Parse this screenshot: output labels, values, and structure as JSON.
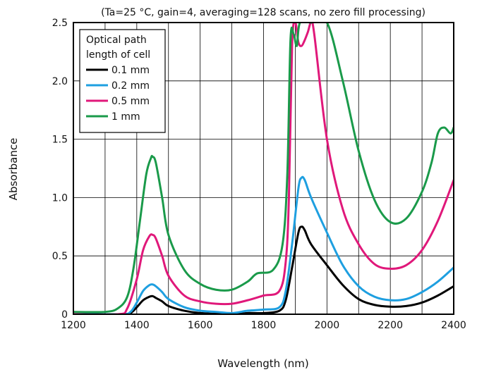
{
  "chart_data": {
    "type": "line",
    "title": "(Ta=25 °C, gain=4, averaging=128 scans, no zero fill processing)",
    "xlabel": "Wavelength (nm)",
    "ylabel": "Absorbance",
    "xlim": [
      1200,
      2400
    ],
    "ylim": [
      0,
      2.5
    ],
    "xticks": [
      "1200",
      "1400",
      "1600",
      "1800",
      "2000",
      "2200",
      "2400"
    ],
    "yticks": [
      "0",
      "0.5",
      "1.0",
      "1.5",
      "2.0",
      "2.5"
    ],
    "grid": true,
    "legend": {
      "title_lines": [
        "Optical path",
        "length of cell"
      ],
      "placement": "top-left"
    },
    "series": [
      {
        "name": "0.1 mm",
        "color": "#000000",
        "points": [
          [
            1200,
            0
          ],
          [
            1350,
            0
          ],
          [
            1380,
            0.01
          ],
          [
            1400,
            0.06
          ],
          [
            1420,
            0.12
          ],
          [
            1440,
            0.15
          ],
          [
            1450,
            0.155
          ],
          [
            1460,
            0.14
          ],
          [
            1480,
            0.11
          ],
          [
            1500,
            0.07
          ],
          [
            1550,
            0.03
          ],
          [
            1600,
            0.01
          ],
          [
            1700,
            0
          ],
          [
            1750,
            0.01
          ],
          [
            1800,
            0.01
          ],
          [
            1850,
            0.03
          ],
          [
            1870,
            0.12
          ],
          [
            1890,
            0.4
          ],
          [
            1910,
            0.7
          ],
          [
            1920,
            0.75
          ],
          [
            1930,
            0.72
          ],
          [
            1950,
            0.6
          ],
          [
            2000,
            0.42
          ],
          [
            2050,
            0.25
          ],
          [
            2100,
            0.13
          ],
          [
            2150,
            0.08
          ],
          [
            2200,
            0.065
          ],
          [
            2250,
            0.07
          ],
          [
            2300,
            0.1
          ],
          [
            2350,
            0.16
          ],
          [
            2400,
            0.24
          ]
        ]
      },
      {
        "name": "0.2 mm",
        "color": "#1e9fe0",
        "points": [
          [
            1200,
            0
          ],
          [
            1350,
            0
          ],
          [
            1380,
            0.02
          ],
          [
            1400,
            0.1
          ],
          [
            1420,
            0.2
          ],
          [
            1440,
            0.25
          ],
          [
            1450,
            0.255
          ],
          [
            1460,
            0.24
          ],
          [
            1480,
            0.19
          ],
          [
            1500,
            0.13
          ],
          [
            1550,
            0.06
          ],
          [
            1600,
            0.03
          ],
          [
            1650,
            0.02
          ],
          [
            1700,
            0.01
          ],
          [
            1750,
            0.03
          ],
          [
            1800,
            0.04
          ],
          [
            1850,
            0.06
          ],
          [
            1870,
            0.2
          ],
          [
            1890,
            0.6
          ],
          [
            1910,
            1.08
          ],
          [
            1920,
            1.17
          ],
          [
            1930,
            1.15
          ],
          [
            1950,
            1.0
          ],
          [
            2000,
            0.7
          ],
          [
            2050,
            0.42
          ],
          [
            2100,
            0.24
          ],
          [
            2150,
            0.15
          ],
          [
            2200,
            0.12
          ],
          [
            2250,
            0.13
          ],
          [
            2300,
            0.19
          ],
          [
            2350,
            0.28
          ],
          [
            2400,
            0.4
          ]
        ]
      },
      {
        "name": "0.5 mm",
        "color": "#e0187a",
        "points": [
          [
            1200,
            0
          ],
          [
            1340,
            0
          ],
          [
            1370,
            0.05
          ],
          [
            1400,
            0.3
          ],
          [
            1420,
            0.55
          ],
          [
            1440,
            0.67
          ],
          [
            1450,
            0.68
          ],
          [
            1460,
            0.65
          ],
          [
            1480,
            0.5
          ],
          [
            1500,
            0.33
          ],
          [
            1550,
            0.16
          ],
          [
            1600,
            0.11
          ],
          [
            1650,
            0.09
          ],
          [
            1700,
            0.09
          ],
          [
            1750,
            0.12
          ],
          [
            1800,
            0.16
          ],
          [
            1850,
            0.2
          ],
          [
            1870,
            0.45
          ],
          [
            1880,
            1.0
          ],
          [
            1890,
            2.3
          ],
          [
            1900,
            2.5
          ],
          [
            1910,
            2.33
          ],
          [
            1920,
            2.3
          ],
          [
            1930,
            2.35
          ],
          [
            1940,
            2.42
          ],
          [
            1950,
            2.5
          ],
          [
            1960,
            2.4
          ],
          [
            2000,
            1.5
          ],
          [
            2050,
            0.9
          ],
          [
            2100,
            0.6
          ],
          [
            2150,
            0.43
          ],
          [
            2200,
            0.39
          ],
          [
            2250,
            0.42
          ],
          [
            2300,
            0.55
          ],
          [
            2350,
            0.8
          ],
          [
            2400,
            1.15
          ]
        ]
      },
      {
        "name": "1 mm",
        "color": "#1a9a4a",
        "points": [
          [
            1200,
            0.02
          ],
          [
            1300,
            0.02
          ],
          [
            1340,
            0.05
          ],
          [
            1370,
            0.15
          ],
          [
            1390,
            0.4
          ],
          [
            1410,
            0.8
          ],
          [
            1430,
            1.2
          ],
          [
            1445,
            1.34
          ],
          [
            1450,
            1.35
          ],
          [
            1460,
            1.3
          ],
          [
            1480,
            1.0
          ],
          [
            1500,
            0.68
          ],
          [
            1550,
            0.38
          ],
          [
            1600,
            0.26
          ],
          [
            1650,
            0.21
          ],
          [
            1700,
            0.21
          ],
          [
            1750,
            0.28
          ],
          [
            1780,
            0.35
          ],
          [
            1830,
            0.38
          ],
          [
            1860,
            0.6
          ],
          [
            1875,
            1.2
          ],
          [
            1885,
            2.35
          ],
          [
            1895,
            2.4
          ],
          [
            1905,
            2.3
          ],
          [
            1915,
            2.5
          ],
          [
            1950,
            2.5
          ],
          [
            2000,
            2.5
          ],
          [
            2050,
            2.0
          ],
          [
            2100,
            1.4
          ],
          [
            2150,
            0.98
          ],
          [
            2200,
            0.79
          ],
          [
            2250,
            0.82
          ],
          [
            2300,
            1.05
          ],
          [
            2330,
            1.3
          ],
          [
            2350,
            1.55
          ],
          [
            2370,
            1.6
          ],
          [
            2390,
            1.55
          ],
          [
            2400,
            1.6
          ]
        ]
      }
    ]
  }
}
